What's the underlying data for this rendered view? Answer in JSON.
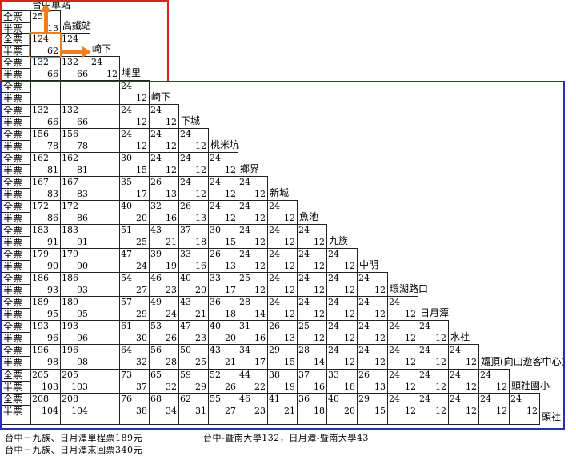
{
  "labels": {
    "full": "全票",
    "half": "半票"
  },
  "colors": {
    "red_frame": "#e02020",
    "blue_frame": "#2b2fb8",
    "orange": "#f07e1e"
  },
  "stations": [
    "台中車站",
    "高鐵站",
    "崎下",
    "埔里",
    "崎下",
    "下城",
    "桃米坑",
    "鄉界",
    "新城",
    "魚池",
    "九族",
    "中明",
    "環湖路口",
    "日月潭",
    "水社",
    "孀頂(向山遊客中心)",
    "頭社國小",
    "頭社"
  ],
  "fares": [
    [],
    [
      [
        "25",
        "13"
      ]
    ],
    [
      [
        "124",
        "62"
      ],
      [
        "124",
        ""
      ]
    ],
    [
      [
        "132",
        "66"
      ],
      [
        "132",
        "66"
      ],
      [
        "24",
        "12"
      ]
    ],
    [
      [
        "",
        ""
      ],
      [
        "",
        ""
      ],
      [
        "",
        ""
      ],
      [
        "24",
        "12"
      ]
    ],
    [
      [
        "132",
        "66"
      ],
      [
        "132",
        "66"
      ],
      [
        "",
        ""
      ],
      [
        "24",
        "12"
      ],
      [
        "24",
        "12"
      ]
    ],
    [
      [
        "156",
        "78"
      ],
      [
        "156",
        "78"
      ],
      [
        "",
        ""
      ],
      [
        "24",
        "12"
      ],
      [
        "24",
        "12"
      ],
      [
        "24",
        "12"
      ]
    ],
    [
      [
        "162",
        "81"
      ],
      [
        "162",
        "81"
      ],
      [
        "",
        ""
      ],
      [
        "30",
        "15"
      ],
      [
        "24",
        "12"
      ],
      [
        "24",
        "12"
      ],
      [
        "24",
        "12"
      ]
    ],
    [
      [
        "167",
        "83"
      ],
      [
        "167",
        "83"
      ],
      [
        "",
        ""
      ],
      [
        "35",
        "17"
      ],
      [
        "26",
        "13"
      ],
      [
        "24",
        "12"
      ],
      [
        "24",
        "12"
      ],
      [
        "24",
        "12"
      ]
    ],
    [
      [
        "172",
        "86"
      ],
      [
        "172",
        "86"
      ],
      [
        "",
        ""
      ],
      [
        "40",
        "20"
      ],
      [
        "32",
        "16"
      ],
      [
        "26",
        "13"
      ],
      [
        "24",
        "12"
      ],
      [
        "24",
        "12"
      ],
      [
        "24",
        "12"
      ]
    ],
    [
      [
        "183",
        "91"
      ],
      [
        "183",
        "91"
      ],
      [
        "",
        ""
      ],
      [
        "51",
        "25"
      ],
      [
        "43",
        "21"
      ],
      [
        "37",
        "18"
      ],
      [
        "30",
        "15"
      ],
      [
        "24",
        "12"
      ],
      [
        "24",
        "12"
      ],
      [
        "24",
        "12"
      ]
    ],
    [
      [
        "179",
        "90"
      ],
      [
        "179",
        "90"
      ],
      [
        "",
        ""
      ],
      [
        "47",
        "24"
      ],
      [
        "39",
        "19"
      ],
      [
        "33",
        "16"
      ],
      [
        "26",
        "13"
      ],
      [
        "24",
        "12"
      ],
      [
        "24",
        "12"
      ],
      [
        "24",
        "12"
      ],
      [
        "24",
        "12"
      ]
    ],
    [
      [
        "186",
        "93"
      ],
      [
        "186",
        "93"
      ],
      [
        "",
        ""
      ],
      [
        "54",
        "27"
      ],
      [
        "46",
        "23"
      ],
      [
        "40",
        "20"
      ],
      [
        "33",
        "17"
      ],
      [
        "25",
        "12"
      ],
      [
        "24",
        "12"
      ],
      [
        "24",
        "12"
      ],
      [
        "24",
        "12"
      ],
      [
        "24",
        "12"
      ]
    ],
    [
      [
        "189",
        "95"
      ],
      [
        "189",
        "95"
      ],
      [
        "",
        ""
      ],
      [
        "57",
        "29"
      ],
      [
        "49",
        "24"
      ],
      [
        "43",
        "21"
      ],
      [
        "36",
        "18"
      ],
      [
        "28",
        "14"
      ],
      [
        "24",
        "12"
      ],
      [
        "24",
        "12"
      ],
      [
        "24",
        "12"
      ],
      [
        "24",
        "12"
      ],
      [
        "24",
        "12"
      ]
    ],
    [
      [
        "193",
        "96"
      ],
      [
        "193",
        "96"
      ],
      [
        "",
        ""
      ],
      [
        "61",
        "30"
      ],
      [
        "53",
        "26"
      ],
      [
        "47",
        "23"
      ],
      [
        "40",
        "20"
      ],
      [
        "31",
        "16"
      ],
      [
        "26",
        "13"
      ],
      [
        "25",
        "12"
      ],
      [
        "24",
        "12"
      ],
      [
        "24",
        "12"
      ],
      [
        "24",
        "12"
      ],
      [
        "24",
        "12"
      ]
    ],
    [
      [
        "196",
        "98"
      ],
      [
        "196",
        "98"
      ],
      [
        "",
        ""
      ],
      [
        "64",
        "32"
      ],
      [
        "56",
        "28"
      ],
      [
        "50",
        "25"
      ],
      [
        "43",
        "21"
      ],
      [
        "34",
        "17"
      ],
      [
        "29",
        "15"
      ],
      [
        "28",
        "14"
      ],
      [
        "24",
        "12"
      ],
      [
        "24",
        "12"
      ],
      [
        "24",
        "12"
      ],
      [
        "24",
        "12"
      ],
      [
        "24",
        "12"
      ]
    ],
    [
      [
        "205",
        "103"
      ],
      [
        "205",
        "103"
      ],
      [
        "",
        ""
      ],
      [
        "73",
        "37"
      ],
      [
        "65",
        "32"
      ],
      [
        "59",
        "29"
      ],
      [
        "52",
        "26"
      ],
      [
        "44",
        "22"
      ],
      [
        "38",
        "19"
      ],
      [
        "37",
        "16"
      ],
      [
        "33",
        "18"
      ],
      [
        "26",
        "13"
      ],
      [
        "24",
        "12"
      ],
      [
        "24",
        "12"
      ],
      [
        "24",
        "12"
      ],
      [
        "24",
        "12"
      ]
    ],
    [
      [
        "208",
        "104"
      ],
      [
        "208",
        "104"
      ],
      [
        "",
        ""
      ],
      [
        "76",
        "38"
      ],
      [
        "68",
        "34"
      ],
      [
        "62",
        "31"
      ],
      [
        "55",
        "27"
      ],
      [
        "46",
        "23"
      ],
      [
        "41",
        "21"
      ],
      [
        "36",
        "18"
      ],
      [
        "40",
        "20"
      ],
      [
        "29",
        "15"
      ],
      [
        "24",
        "12"
      ],
      [
        "24",
        "12"
      ],
      [
        "24",
        "12"
      ],
      [
        "24",
        "12"
      ],
      [
        "24",
        "12"
      ]
    ]
  ],
  "notes": {
    "line1a": "台中－九族、日月潭單程票189元",
    "line1b": "台中-暨南大學132，日月潭-暨南大學43",
    "line2": "台中－九族、日月潭來回票340元"
  }
}
